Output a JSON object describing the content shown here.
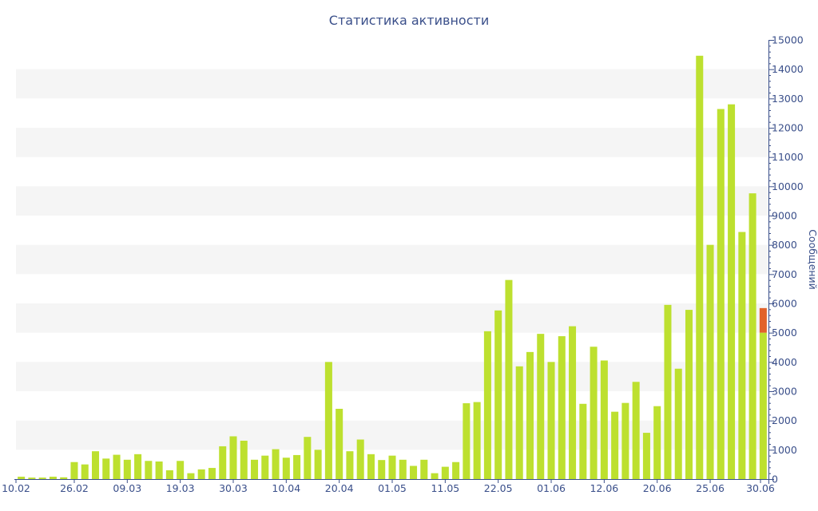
{
  "chart_data": {
    "type": "bar",
    "title": "Статистика активности",
    "ylabel": "Сообщений",
    "xlabel": "",
    "ylim": [
      0,
      15000
    ],
    "y_ticks": [
      0,
      1000,
      2000,
      3000,
      4000,
      5000,
      6000,
      7000,
      8000,
      9000,
      10000,
      11000,
      12000,
      13000,
      14000,
      15000
    ],
    "x_tick_labels": [
      "10.02",
      "26.02",
      "09.03",
      "19.03",
      "30.03",
      "10.04",
      "20.04",
      "01.05",
      "11.05",
      "22.05",
      "01.06",
      "12.06",
      "20.06",
      "25.06",
      "30.06"
    ],
    "y_axis_position": "right",
    "grid": "horizontal alternating bands",
    "colors": {
      "bar": "#bde02f",
      "highlight": "#e2622a",
      "text": "#3a4f8a",
      "band": "#f5f5f5"
    },
    "series": [
      {
        "values": [
          80,
          50,
          50,
          80,
          60,
          580,
          500,
          950,
          700,
          830,
          660,
          850,
          620,
          600,
          300,
          620,
          200,
          330,
          380,
          1120,
          1460,
          1310,
          660,
          800,
          1020,
          730,
          820,
          1440,
          1000,
          4000,
          2400,
          950,
          1350,
          850,
          650,
          800,
          660,
          450,
          660,
          200,
          420,
          580,
          2590,
          2630,
          5050,
          5760,
          6800,
          3850,
          4340,
          4960,
          4000,
          4880,
          5220,
          2570,
          4520,
          4050,
          2300,
          2600,
          3320,
          1580,
          2490,
          5950,
          3770,
          5780,
          14460,
          8000,
          12640,
          12800,
          8440,
          9760,
          5840
        ]
      }
    ],
    "highlight_last": true
  }
}
